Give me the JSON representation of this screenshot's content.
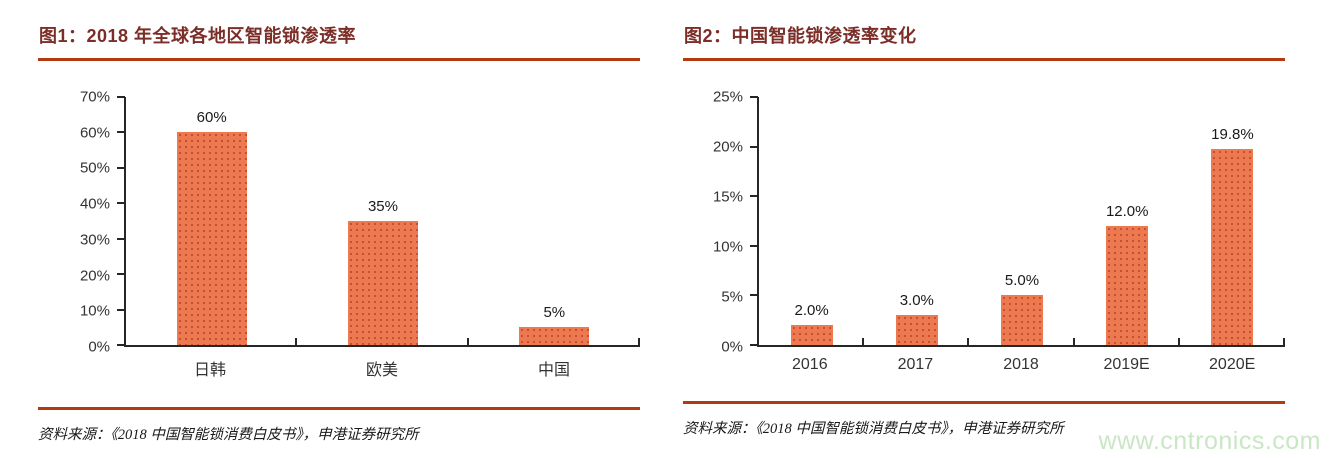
{
  "chart_data": [
    {
      "type": "bar",
      "title": "图1：2018 年全球各地区智能锁渗透率",
      "categories": [
        "日韩",
        "欧美",
        "中国"
      ],
      "values": [
        60,
        35,
        5
      ],
      "data_labels": [
        "60%",
        "35%",
        "5%"
      ],
      "ylim": [
        0,
        70
      ],
      "ytick_step": 10,
      "ytick_labels": [
        "70%",
        "60%",
        "50%",
        "40%",
        "30%",
        "20%",
        "10%",
        "0%"
      ],
      "grid": false,
      "legend": "none",
      "source_note": "资料来源：《2018 中国智能锁消费白皮书》，申港证券研究所"
    },
    {
      "type": "bar",
      "title": "图2：中国智能锁渗透率变化",
      "categories": [
        "2016",
        "2017",
        "2018",
        "2019E",
        "2020E"
      ],
      "values": [
        2.0,
        3.0,
        5.0,
        12.0,
        19.8
      ],
      "data_labels": [
        "2.0%",
        "3.0%",
        "5.0%",
        "12.0%",
        "19.8%"
      ],
      "ylim": [
        0,
        25
      ],
      "ytick_step": 5,
      "ytick_labels": [
        "25%",
        "20%",
        "15%",
        "10%",
        "5%",
        "0%"
      ],
      "grid": false,
      "legend": "none",
      "source_note": "资料来源：《2018 中国智能锁消费白皮书》，申港证券研究所"
    }
  ],
  "watermark": {
    "text": "www.cntronics.com"
  },
  "colors": {
    "bar_fill": "#ec7950",
    "bar_dot": "#c2492f",
    "title_text": "#7b2e27",
    "rule": "#b23a10",
    "axis": "#262626",
    "watermark": "#c9e7c4"
  }
}
